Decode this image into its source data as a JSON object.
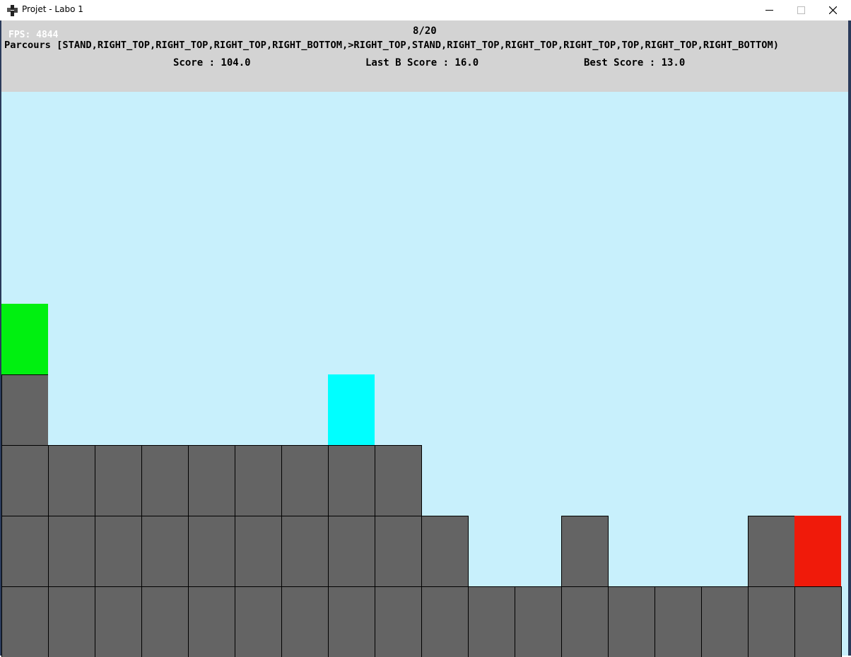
{
  "window": {
    "title": "Projet - Labo 1"
  },
  "hud": {
    "fps": "FPS: 4844",
    "generation": "8/20",
    "parcours": "Parcours [STAND,RIGHT_TOP,RIGHT_TOP,RIGHT_TOP,RIGHT_BOTTOM,>RIGHT_TOP,STAND,RIGHT_TOP,RIGHT_TOP,RIGHT_TOP,TOP,RIGHT_TOP,RIGHT_BOTTOM)",
    "score": "Score : 104.0",
    "last_score": "Last B Score : 16.0",
    "best_score": "Best Score : 13.0"
  },
  "colors": {
    "hud_bg": "#d3d3d3",
    "sky": "#c8f0fc",
    "block": "#646464",
    "player": "#00f010",
    "ghost": "#00ffff",
    "goal": "#f01a0a"
  }
}
